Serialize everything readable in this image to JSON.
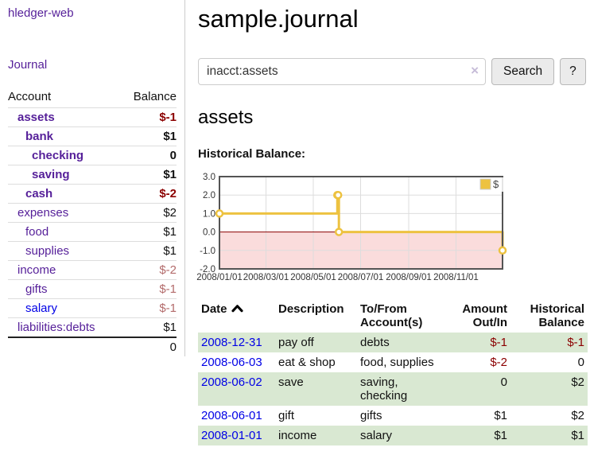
{
  "app": {
    "title": "hledger-web"
  },
  "sidebar": {
    "journal_link": "Journal",
    "headers": {
      "account": "Account",
      "balance": "Balance"
    },
    "accounts": [
      {
        "name": "assets",
        "depth": 1,
        "balance": "$-1",
        "bold": true,
        "neg": "strong"
      },
      {
        "name": "bank",
        "depth": 2,
        "balance": "$1",
        "bold": true
      },
      {
        "name": "checking",
        "depth": 3,
        "balance": "0",
        "bold": true
      },
      {
        "name": "saving",
        "depth": 3,
        "balance": "$1",
        "bold": true
      },
      {
        "name": "cash",
        "depth": 2,
        "balance": "$-2",
        "bold": true,
        "neg": "strong"
      },
      {
        "name": "expenses",
        "depth": 1,
        "balance": "$2"
      },
      {
        "name": "food",
        "depth": 2,
        "balance": "$1"
      },
      {
        "name": "supplies",
        "depth": 2,
        "balance": "$1"
      },
      {
        "name": "income",
        "depth": 1,
        "balance": "$-2",
        "neg": "soft"
      },
      {
        "name": "gifts",
        "depth": 2,
        "balance": "$-1",
        "neg": "soft"
      },
      {
        "name": "salary",
        "depth": 2,
        "balance": "$-1",
        "neg": "soft",
        "blue": true
      },
      {
        "name": "liabilities:debts",
        "depth": 1,
        "balance": "$1"
      }
    ],
    "total": "0"
  },
  "main": {
    "title": "sample.journal",
    "search": {
      "value": "inacct:assets",
      "clear_icon": "×",
      "search_button": "Search",
      "help_button": "?"
    },
    "account_heading": "assets",
    "chart_label": "Historical Balance:"
  },
  "chart_data": {
    "type": "line",
    "step": true,
    "title": "Historical Balance of assets",
    "legend": [
      {
        "label": "$",
        "color": "#EDC240"
      }
    ],
    "legend_position": "top-right",
    "grid": true,
    "xrange": [
      "2008-01-01",
      "2008-12-31"
    ],
    "ylim": [
      -2,
      3
    ],
    "yticks": [
      {
        "label": "3.0",
        "value": 3
      },
      {
        "label": "2.0",
        "value": 2
      },
      {
        "label": "1.0",
        "value": 1
      },
      {
        "label": "0.0",
        "value": 0
      },
      {
        "label": "-1.0",
        "value": -1
      },
      {
        "label": "-2.0",
        "value": -2
      }
    ],
    "xticks": [
      {
        "label": "2008/01/01",
        "date": "2008-01-01"
      },
      {
        "label": "2008/03/01",
        "date": "2008-03-01"
      },
      {
        "label": "2008/05/01",
        "date": "2008-05-01"
      },
      {
        "label": "2008/07/01",
        "date": "2008-07-01"
      },
      {
        "label": "2008/09/01",
        "date": "2008-09-01"
      },
      {
        "label": "2008/11/01",
        "date": "2008-11-01"
      }
    ],
    "series": [
      {
        "name": "$",
        "points": [
          [
            "2008-01-01",
            1
          ],
          [
            "2008-06-01",
            2
          ],
          [
            "2008-06-02",
            2
          ],
          [
            "2008-06-03",
            0
          ],
          [
            "2008-12-31",
            -1
          ]
        ]
      }
    ],
    "colors": {
      "line": "#EDC240",
      "marker_fill": "#ffffff",
      "zero_line": "#8b0000",
      "negative_fill": "#fadcdc",
      "grid": "#dddddd",
      "border": "#545454"
    }
  },
  "register": {
    "headers": {
      "date": "Date",
      "description": "Description",
      "account": "To/From Account(s)",
      "amount": "Amount Out/In",
      "balance": "Historical Balance"
    },
    "rows": [
      {
        "date": "2008-12-31",
        "description": "pay off",
        "account": "debts",
        "amount": "$-1",
        "amount_neg": true,
        "balance": "$-1",
        "balance_neg": true,
        "shaded": true
      },
      {
        "date": "2008-06-03",
        "description": "eat & shop",
        "account": "food, supplies",
        "amount": "$-2",
        "amount_neg": true,
        "balance": "0",
        "balance_neg": false,
        "shaded": false
      },
      {
        "date": "2008-06-02",
        "description": "save",
        "account": "saving, checking",
        "amount": "0",
        "amount_neg": false,
        "balance": "$2",
        "balance_neg": false,
        "shaded": true
      },
      {
        "date": "2008-06-01",
        "description": "gift",
        "account": "gifts",
        "amount": "$1",
        "amount_neg": false,
        "balance": "$2",
        "balance_neg": false,
        "shaded": false
      },
      {
        "date": "2008-01-01",
        "description": "income",
        "account": "salary",
        "amount": "$1",
        "amount_neg": false,
        "balance": "$1",
        "balance_neg": false,
        "shaded": true
      }
    ]
  }
}
